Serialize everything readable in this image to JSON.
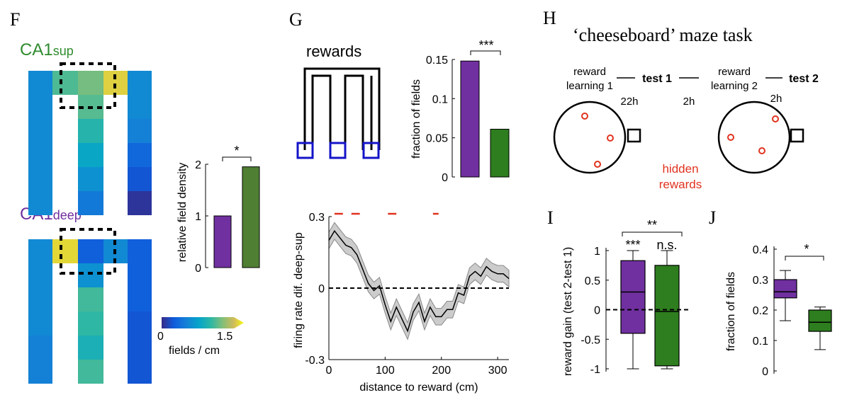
{
  "colors": {
    "purple": "#7030a0",
    "green": "#2e7d1e",
    "green_light": "#4f7f33",
    "blue_box": "#1414c8",
    "red": "#e0321e",
    "green_title": "#2e8b2e",
    "purple_title": "#7030a0",
    "ci_fill": "#cccccc"
  },
  "panel_F": {
    "letter": "F",
    "title_sup": "CA1",
    "title_sup_sub": "sup",
    "title_deep": "CA1",
    "title_deep_sub": "deep",
    "colorbar": {
      "min_label": "0",
      "max_label": "1.5",
      "label": "fields / cm",
      "colormap": "parula"
    },
    "maze_sup": {
      "left_arm": [
        0.5,
        0.5,
        0.5,
        0.5,
        0.5,
        0.5
      ],
      "top": [
        0.5,
        0.98,
        1.08,
        1.05,
        1.38,
        0.5
      ],
      "center_arm": [
        1.0,
        0.85,
        0.7,
        0.55,
        0.4
      ],
      "right_arm": [
        0.5,
        0.5,
        0.45,
        0.3,
        0.2,
        0.05
      ]
    },
    "maze_deep": {
      "top": [
        0.5,
        1.4,
        0.25,
        0.25,
        0.5,
        0.2
      ],
      "left_arm": [
        0.5,
        0.5,
        0.5,
        0.5,
        0.45,
        0.45
      ],
      "center_arm": [
        0.55,
        0.95,
        0.9,
        0.8,
        0.95
      ],
      "right_arm": [
        0.25,
        0.25,
        0.25,
        0.2,
        0.2,
        0.2
      ]
    }
  },
  "chart_data": [
    {
      "id": "F_bar",
      "type": "bar",
      "categories": [
        "CA1sup",
        "CA1deep"
      ],
      "values": [
        1.0,
        1.95
      ],
      "ylabel": "relative field density",
      "ylim": [
        0,
        2
      ],
      "yticks": [
        "0",
        "1",
        "2"
      ],
      "significance": "*"
    },
    {
      "id": "G_bar",
      "type": "bar",
      "categories": [
        "CA1deep",
        "CA1sup"
      ],
      "values": [
        0.148,
        0.061
      ],
      "ylabel": "fraction of fields",
      "ylim": [
        0,
        0.15
      ],
      "yticks": [
        "0",
        "0.05",
        "0.1",
        "0.15"
      ],
      "significance": "***"
    },
    {
      "id": "G_line",
      "type": "line",
      "xlabel": "distance to reward (cm)",
      "ylabel": "firing rate dif. deep-sup",
      "xlim": [
        0,
        320
      ],
      "ylim": [
        -0.3,
        0.3
      ],
      "xticks": [
        "0",
        "100",
        "200",
        "300"
      ],
      "yticks": [
        "-0.3",
        "0",
        "0.3"
      ],
      "x": [
        0,
        10,
        20,
        30,
        40,
        50,
        60,
        70,
        80,
        90,
        100,
        110,
        120,
        130,
        140,
        150,
        160,
        170,
        180,
        190,
        200,
        210,
        220,
        230,
        240,
        250,
        260,
        270,
        280,
        290,
        300,
        310,
        320
      ],
      "mean": [
        0.2,
        0.24,
        0.21,
        0.18,
        0.17,
        0.14,
        0.08,
        0.02,
        -0.01,
        0.01,
        -0.07,
        -0.14,
        -0.08,
        -0.13,
        -0.18,
        -0.1,
        -0.06,
        -0.14,
        -0.08,
        -0.12,
        -0.12,
        -0.09,
        -0.09,
        -0.02,
        -0.03,
        0.05,
        0.07,
        0.05,
        0.09,
        0.07,
        0.06,
        0.06,
        0.04
      ],
      "sem": 0.035,
      "zero_line": 0,
      "significant_segments": [
        [
          10,
          25
        ],
        [
          40,
          55
        ],
        [
          105,
          120
        ],
        [
          185,
          195
        ]
      ]
    },
    {
      "id": "I_box",
      "type": "box",
      "categories": [
        "CA1deep",
        "CA1sup"
      ],
      "ylabel": "reward gain (test 2-test 1)",
      "ylim": [
        -1,
        1
      ],
      "yticks": [
        "-1",
        "-0.5",
        "0",
        "0.5",
        "1"
      ],
      "boxes": [
        {
          "min": -1.0,
          "q1": -0.4,
          "median": 0.3,
          "q3": 0.83,
          "max": 1.0,
          "label": "***"
        },
        {
          "min": -1.0,
          "q1": -0.95,
          "median": -0.03,
          "q3": 0.75,
          "max": 1.0,
          "label": "n.s."
        }
      ],
      "bracket_label": "**"
    },
    {
      "id": "J_box",
      "type": "box",
      "categories": [
        "CA1deep",
        "CA1sup"
      ],
      "ylabel": "fraction of fields",
      "ylim": [
        0,
        0.4
      ],
      "yticks": [
        "0",
        "0.1",
        "0.2",
        "0.3",
        "0.4"
      ],
      "boxes": [
        {
          "min": 0.165,
          "q1": 0.24,
          "median": 0.26,
          "q3": 0.3,
          "max": 0.33
        },
        {
          "min": 0.07,
          "q1": 0.13,
          "median": 0.16,
          "q3": 0.2,
          "max": 0.21
        }
      ],
      "bracket_label": "*"
    }
  ],
  "panel_G": {
    "letter": "G",
    "maze_title": "rewards"
  },
  "panel_H": {
    "letter": "H",
    "title": "‘cheeseboard’ maze task",
    "reward_learning_1_line1": "reward",
    "reward_learning_1_line2": "learning 1",
    "test1": "test 1",
    "gap1": "22h",
    "gap2": "2h",
    "reward_learning_2_line1": "reward",
    "reward_learning_2_line2": "learning 2",
    "test2": "test 2",
    "gap3": "2h",
    "hidden_line1": "hidden",
    "hidden_line2": "rewards"
  },
  "panel_I": {
    "letter": "I"
  },
  "panel_J": {
    "letter": "J"
  }
}
